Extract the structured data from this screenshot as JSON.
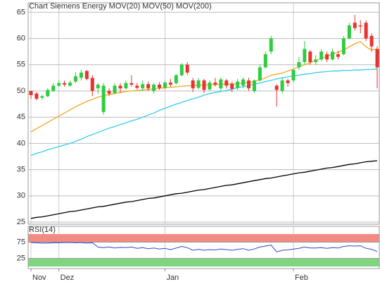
{
  "chart_data": [
    {
      "type": "candlestick",
      "title": "Chart Siemens Energy",
      "title_color": "#e8332f",
      "categories": [
        "Nov",
        null,
        null,
        null,
        null,
        "Dez",
        null,
        null,
        null,
        null,
        null,
        null,
        null,
        null,
        null,
        null,
        null,
        null,
        null,
        null,
        null,
        null,
        null,
        null,
        "Jan",
        null,
        null,
        null,
        null,
        null,
        null,
        null,
        null,
        null,
        null,
        null,
        null,
        null,
        null,
        null,
        null,
        null,
        null,
        null,
        null,
        null,
        null,
        "Feb",
        null,
        null,
        null,
        null,
        null,
        null,
        null,
        null,
        null,
        null,
        null,
        null,
        null,
        null,
        null
      ],
      "open": [
        50,
        49.5,
        48.7,
        49,
        50,
        51,
        51.5,
        51,
        51.8,
        52.5,
        53.8,
        52.5,
        50.5,
        46,
        50,
        49.6,
        51,
        50.5,
        51.5,
        51,
        50.5,
        51.3,
        50,
        51.2,
        50.6,
        51.6,
        51.5,
        53,
        55,
        52,
        50.6,
        52,
        50.3,
        51.6,
        50.5,
        52,
        51.4,
        50.6,
        51,
        52,
        50,
        52,
        54.5,
        57.5,
        51,
        50,
        52,
        52,
        54.5,
        55.5,
        57.5,
        55.5,
        56,
        57,
        56,
        57,
        57,
        60,
        63,
        62.5,
        63,
        60.5,
        58
      ],
      "high": [
        50,
        49.8,
        49.3,
        50.5,
        51.5,
        52,
        52,
        52,
        53.6,
        54,
        54,
        53,
        51.5,
        51.5,
        50.5,
        51.5,
        51.5,
        52,
        53,
        51.5,
        52,
        51.8,
        51.5,
        51.7,
        52,
        52.3,
        53.2,
        55.3,
        55.5,
        52.5,
        52.5,
        52.3,
        52,
        52.5,
        52.6,
        52.3,
        51.8,
        52.3,
        52.6,
        52.5,
        52.2,
        55,
        57.5,
        60.5,
        51.3,
        52.5,
        52.3,
        54.2,
        56.5,
        59.5,
        57.8,
        56.8,
        58,
        57.5,
        58,
        57.6,
        60.5,
        63,
        64.5,
        63.5,
        63.5,
        61,
        58.5
      ],
      "low": [
        48.5,
        48.2,
        48.3,
        48.8,
        49.8,
        50.8,
        50.8,
        50.8,
        51.5,
        52,
        52,
        49,
        49.5,
        45.5,
        49,
        49.5,
        49.6,
        50.3,
        50.8,
        50.3,
        50,
        50,
        49.5,
        50.2,
        50.3,
        50.8,
        51.2,
        52.8,
        53,
        49.8,
        50.3,
        49.6,
        50,
        50.8,
        50,
        50.5,
        49.8,
        50.2,
        50.6,
        50,
        49.6,
        51.8,
        54.3,
        57,
        47,
        49.5,
        50.8,
        51.6,
        54,
        55,
        55,
        55,
        55.7,
        55.5,
        55.8,
        56,
        56.8,
        59.8,
        61.5,
        61,
        59.5,
        57.5,
        50.5
      ],
      "close": [
        49.2,
        48.5,
        49,
        50.2,
        51,
        51.5,
        51.2,
        51.6,
        52.8,
        53.5,
        52.3,
        50,
        51.2,
        51,
        49.5,
        51,
        50.5,
        51.5,
        51.2,
        50.6,
        51.3,
        50.5,
        51.2,
        50.6,
        51.6,
        51.2,
        53,
        55,
        53.5,
        50.5,
        52,
        50.2,
        51.6,
        51.2,
        52.2,
        51,
        50.4,
        51.8,
        52.2,
        50.5,
        52,
        54.5,
        57,
        60,
        50.2,
        52,
        51.5,
        54,
        55.5,
        58,
        55.5,
        56,
        57.5,
        56,
        57.5,
        56.5,
        60,
        62.5,
        62,
        62.3,
        60,
        58.5,
        54.5
      ],
      "up_color": "#2ecc40",
      "down_color": "#e8332f",
      "series": [
        {
          "name": "MOV(20)",
          "color": "#f5a623",
          "values": [
            42.2,
            42.8,
            43.4,
            44.0,
            44.6,
            45.2,
            45.8,
            46.4,
            47.0,
            47.5,
            48.0,
            48.4,
            48.8,
            49.1,
            49.3,
            49.5,
            49.7,
            49.9,
            50.0,
            50.1,
            50.2,
            50.3,
            50.4,
            50.5,
            50.6,
            50.7,
            50.8,
            50.9,
            51.0,
            51.0,
            51.1,
            51.1,
            51.2,
            51.2,
            51.3,
            51.3,
            51.3,
            51.4,
            51.5,
            51.6,
            51.8,
            52.1,
            52.5,
            53.0,
            53.2,
            53.4,
            53.8,
            54.2,
            54.6,
            55.0,
            55.4,
            55.8,
            56.2,
            56.6,
            57.0,
            57.4,
            57.8,
            58.4,
            59.0,
            59.4,
            58.4,
            57.8,
            58.0
          ]
        },
        {
          "name": "MOV(50)",
          "color": "#33ccee",
          "values": [
            37.7,
            38.1,
            38.4,
            38.8,
            39.1,
            39.4,
            39.7,
            40.0,
            40.4,
            40.8,
            41.3,
            41.7,
            42.1,
            42.5,
            42.9,
            43.2,
            43.6,
            43.9,
            44.3,
            44.6,
            45.0,
            45.4,
            45.8,
            46.3,
            46.7,
            47.1,
            47.5,
            47.8,
            48.2,
            48.5,
            48.8,
            49.2,
            49.5,
            49.7,
            49.9,
            50.1,
            50.3,
            50.6,
            50.8,
            51.0,
            51.3,
            51.5,
            51.8,
            52.0,
            52.3,
            52.5,
            52.7,
            52.9,
            53.0,
            53.2,
            53.3,
            53.5,
            53.6,
            53.7,
            53.8,
            53.8,
            53.9,
            53.9,
            54.0,
            54.0,
            54.1,
            54.1,
            54.2
          ]
        },
        {
          "name": "MOV(200)",
          "color": "#000000",
          "values": [
            25.7,
            25.9,
            26.0,
            26.2,
            26.4,
            26.6,
            26.8,
            27.0,
            27.1,
            27.3,
            27.5,
            27.7,
            27.9,
            28.0,
            28.2,
            28.4,
            28.6,
            28.8,
            28.9,
            29.1,
            29.3,
            29.5,
            29.6,
            29.8,
            30.0,
            30.2,
            30.4,
            30.5,
            30.7,
            30.9,
            31.1,
            31.2,
            31.4,
            31.6,
            31.8,
            32.0,
            32.1,
            32.3,
            32.5,
            32.7,
            32.9,
            33.1,
            33.3,
            33.4,
            33.6,
            33.8,
            34.0,
            34.2,
            34.4,
            34.5,
            34.7,
            34.9,
            35.1,
            35.3,
            35.4,
            35.6,
            35.8,
            36.0,
            36.1,
            36.3,
            36.5,
            36.6,
            36.7
          ]
        }
      ],
      "ylim": [
        24.6,
        66.8
      ],
      "yticks": [
        25,
        30,
        35,
        40,
        45,
        50,
        55,
        60,
        65
      ],
      "grid": true
    },
    {
      "type": "line",
      "title": "RSI(14)",
      "values": [
        74,
        73,
        72,
        72,
        73,
        73,
        74,
        74,
        73,
        74,
        72,
        73,
        60,
        58,
        60,
        57,
        59,
        58,
        60,
        56,
        58,
        55,
        57,
        54,
        56,
        52,
        57,
        62,
        58,
        50,
        53,
        50,
        52,
        51,
        54,
        52,
        50,
        53,
        55,
        50,
        54,
        60,
        63,
        66,
        45,
        50,
        51,
        54,
        56,
        60,
        57,
        57,
        58,
        56,
        58,
        57,
        62,
        64,
        63,
        64,
        56,
        53,
        46
      ],
      "color": "#3344cc",
      "zones": [
        {
          "range": [
            75,
            100
          ],
          "color": "#f28b82"
        },
        {
          "range": [
            0,
            25
          ],
          "color": "#7fd67f"
        }
      ],
      "ylim": [
        0,
        100
      ],
      "yticks": [
        25,
        75
      ]
    }
  ]
}
